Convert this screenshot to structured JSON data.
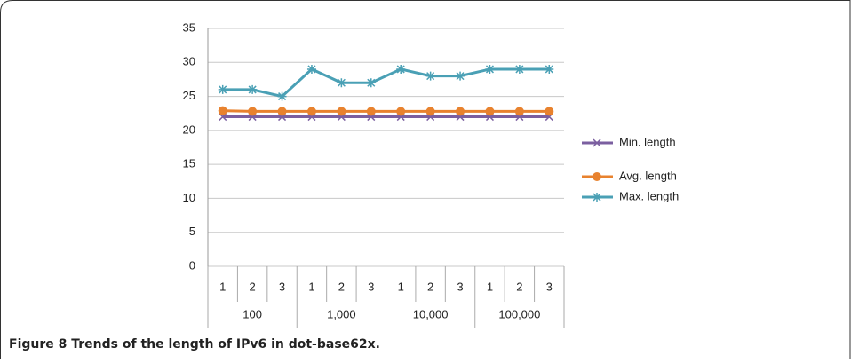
{
  "chart_data": {
    "type": "line",
    "categories": [
      "1",
      "2",
      "3",
      "1",
      "2",
      "3",
      "1",
      "2",
      "3",
      "1",
      "2",
      "3"
    ],
    "groups": [
      "100",
      "1,000",
      "10,000",
      "100,000"
    ],
    "series": [
      {
        "name": "Min. length",
        "color": "#7b5fa0",
        "marker": "x",
        "values": [
          22,
          22,
          22,
          22,
          22,
          22,
          22,
          22,
          22,
          22,
          22,
          22
        ]
      },
      {
        "name": "Avg. length",
        "color": "#e8822e",
        "marker": "circle",
        "values": [
          22.9,
          22.8,
          22.8,
          22.8,
          22.8,
          22.8,
          22.8,
          22.8,
          22.8,
          22.8,
          22.8,
          22.8
        ]
      },
      {
        "name": "Max. length",
        "color": "#4aa0b5",
        "marker": "asterisk",
        "values": [
          26,
          26,
          25,
          29,
          27,
          27,
          29,
          28,
          28,
          29,
          29,
          29
        ]
      }
    ],
    "ylim": [
      0,
      35
    ],
    "yticks": [
      0,
      5,
      10,
      15,
      20,
      25,
      30,
      35
    ],
    "grid": true,
    "legend": "right",
    "caption": {
      "label": "Figure 8",
      "text": "Trends of the length of IPv6 in dot-base62x."
    }
  }
}
